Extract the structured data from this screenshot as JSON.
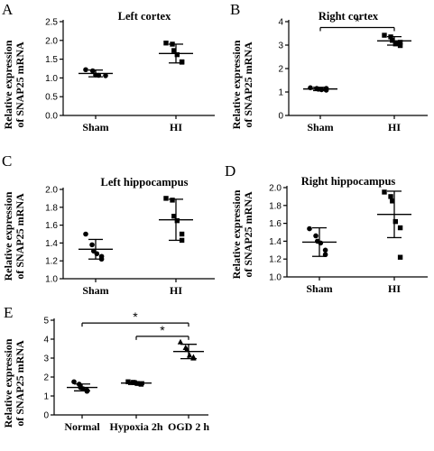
{
  "figure": {
    "axis_color": "#000000",
    "mark_color": "#000000"
  },
  "chart_data": [
    {
      "panel": "A",
      "type": "scatter",
      "title": "Left cortex",
      "ylabel": [
        "Relative expression",
        "of SNAP25 mRNA"
      ],
      "categories": [
        "Sham",
        "HI"
      ],
      "ylim": [
        0,
        2.5
      ],
      "yticks": [
        "0.0",
        "0.5",
        "1.0",
        "1.5",
        "2.0",
        "2.5"
      ],
      "yticks_values": [
        0,
        0.5,
        1,
        1.5,
        2,
        2.5
      ],
      "marker": "square",
      "sham_marker": "circle",
      "groups": [
        {
          "name": "Sham",
          "marker": "circle",
          "mean": 1.12,
          "sd": 0.09,
          "points": [
            1.22,
            1.19,
            1.08,
            1.07,
            1.06
          ]
        },
        {
          "name": "HI",
          "marker": "square",
          "mean": 1.65,
          "sd": 0.25,
          "points": [
            1.93,
            1.9,
            1.73,
            1.62,
            1.43,
            1.42
          ]
        }
      ],
      "significance": []
    },
    {
      "panel": "B",
      "type": "scatter",
      "title": "Right cortex",
      "ylabel": [
        "Relative expression",
        "of SNAP25 mRNA"
      ],
      "categories": [
        "Sham",
        "HI"
      ],
      "ylim": [
        0,
        4
      ],
      "yticks": [
        "0",
        "1",
        "2",
        "3",
        "4"
      ],
      "yticks_values": [
        0,
        1,
        2,
        3,
        4
      ],
      "groups": [
        {
          "name": "Sham",
          "marker": "circle",
          "mean": 1.13,
          "sd": 0.07,
          "points": [
            1.18,
            1.15,
            1.12,
            1.1,
            1.08,
            1.15
          ]
        },
        {
          "name": "HI",
          "marker": "square",
          "mean": 3.18,
          "sd": 0.18,
          "points": [
            3.42,
            3.35,
            3.2,
            3.05,
            2.98,
            3.12
          ]
        }
      ],
      "significance": [
        {
          "from": 0,
          "to": 1,
          "y": 3.75,
          "label": "*"
        }
      ]
    },
    {
      "panel": "C",
      "type": "scatter",
      "title": "Left hippocampus",
      "ylabel": [
        "Relative expression",
        "of SNAP25 mRNA"
      ],
      "categories": [
        "Sham",
        "HI"
      ],
      "ylim": [
        1.0,
        2.0
      ],
      "yticks": [
        "1.0",
        "1.2",
        "1.4",
        "1.6",
        "1.8",
        "2.0"
      ],
      "yticks_values": [
        1.0,
        1.2,
        1.4,
        1.6,
        1.8,
        2.0
      ],
      "groups": [
        {
          "name": "Sham",
          "marker": "circle",
          "mean": 1.33,
          "sd": 0.11,
          "points": [
            1.5,
            1.38,
            1.31,
            1.28,
            1.25,
            1.22
          ]
        },
        {
          "name": "HI",
          "marker": "square",
          "mean": 1.66,
          "sd": 0.23,
          "points": [
            1.9,
            1.88,
            1.7,
            1.65,
            1.5,
            1.43
          ]
        }
      ],
      "significance": []
    },
    {
      "panel": "D",
      "type": "scatter",
      "title": "Right hippocampus",
      "ylabel": [
        "Relative expression",
        "of SNAP25 mRNA"
      ],
      "categories": [
        "Sham",
        "HI"
      ],
      "ylim": [
        1.0,
        2.0
      ],
      "yticks": [
        "1.0",
        "1.2",
        "1.4",
        "1.6",
        "1.8",
        "2.0"
      ],
      "yticks_values": [
        1.0,
        1.2,
        1.4,
        1.6,
        1.8,
        2.0
      ],
      "groups": [
        {
          "name": "Sham",
          "marker": "circle",
          "mean": 1.39,
          "sd": 0.16,
          "points": [
            1.54,
            1.46,
            1.4,
            1.38,
            1.3,
            1.25
          ]
        },
        {
          "name": "HI",
          "marker": "square",
          "mean": 1.7,
          "sd": 0.26,
          "points": [
            1.95,
            1.9,
            1.85,
            1.62,
            1.55,
            1.22
          ]
        }
      ],
      "significance": []
    },
    {
      "panel": "E",
      "type": "scatter",
      "title": "",
      "ylabel": [
        "Relative expression",
        "of SNAP25 mRNA"
      ],
      "categories": [
        "Normal",
        "Hypoxia 2h",
        "OGD 2 h"
      ],
      "ylim": [
        0,
        5
      ],
      "yticks": [
        "0",
        "1",
        "2",
        "3",
        "4",
        "5"
      ],
      "yticks_values": [
        0,
        1,
        2,
        3,
        4,
        5
      ],
      "groups": [
        {
          "name": "Normal",
          "marker": "circle",
          "mean": 1.45,
          "sd": 0.18,
          "points": [
            1.75,
            1.62,
            1.45,
            1.38,
            1.3,
            1.25
          ]
        },
        {
          "name": "Hypoxia 2h",
          "marker": "square",
          "mean": 1.68,
          "sd": 0.07,
          "points": [
            1.75,
            1.72,
            1.7,
            1.66,
            1.64,
            1.62
          ]
        },
        {
          "name": "OGD 2 h",
          "marker": "triangle",
          "mean": 3.35,
          "sd": 0.38,
          "points": [
            3.85,
            3.55,
            3.45,
            3.15,
            3.05,
            3.0
          ]
        }
      ],
      "significance": [
        {
          "from": 0,
          "to": 2,
          "y": 4.85,
          "label": "*"
        },
        {
          "from": 1,
          "to": 2,
          "y": 4.15,
          "label": "*"
        }
      ]
    }
  ]
}
